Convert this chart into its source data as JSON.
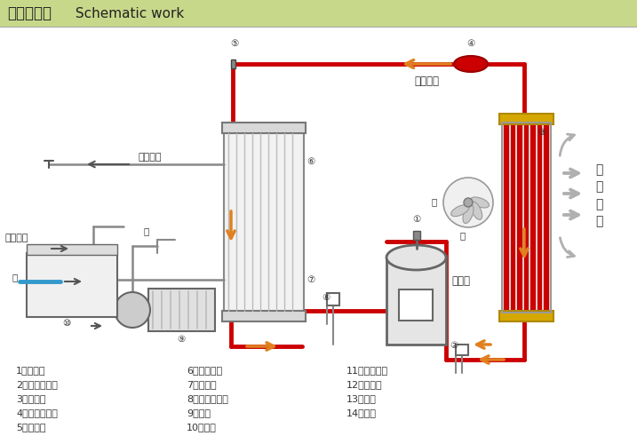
{
  "title_cn": "工作原理图",
  "title_en": " Schematic work",
  "title_bg": "#c8d88a",
  "bg_color": "#ffffff",
  "red": "#cc0000",
  "orange": "#e08020",
  "legend_col1": [
    "1、压缩机",
    "2、高压控制器",
    "3、冷凝器",
    "4、干燥过滤器",
    "5、膨胀阀"
  ],
  "legend_col2": [
    "6、防冻开关",
    "7、蔗发器",
    "8、低压控制器",
    "9、水泵",
    "10、水筱"
  ],
  "legend_col3": [
    "11、浮球开关",
    "12、球心阀",
    "13、电机",
    "14、风扇"
  ],
  "label_lengmei": "冷媒流向",
  "label_lengshui_out": "冷冻水出",
  "label_lengshui_in": "冷冻水回",
  "label_paiqice": "排气侧",
  "label_qiliu": "气\n流\n方\n向"
}
